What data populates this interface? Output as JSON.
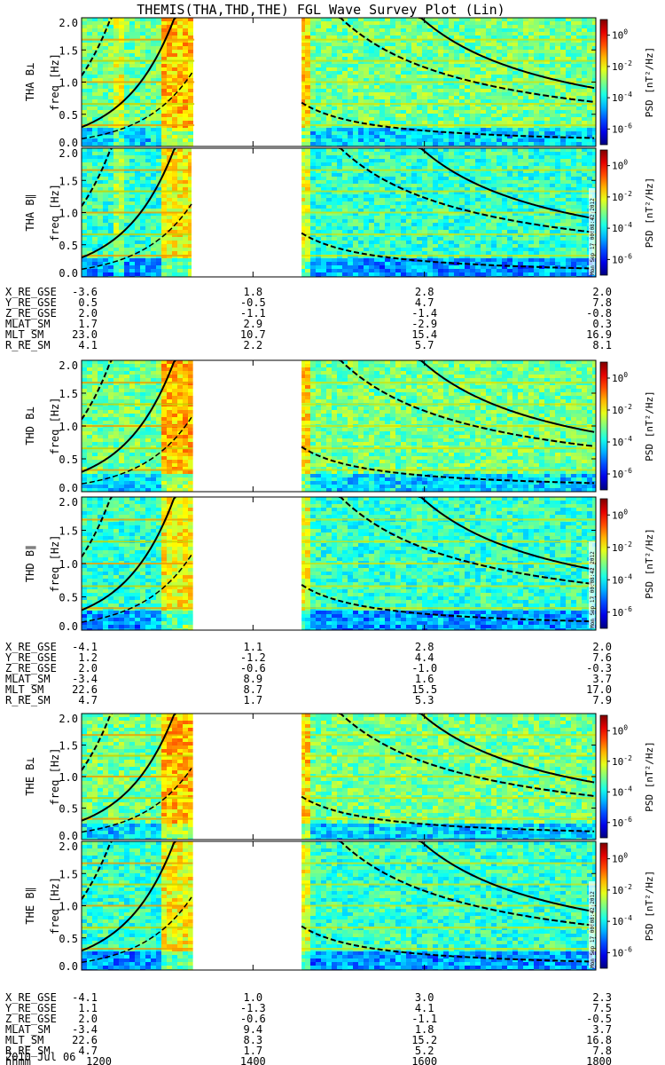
{
  "title": "THEMIS(THA,THD,THE) FGL Wave Survey Plot (Lin)",
  "stamp": "Mon Sep 17 00:08:42 2012",
  "colorbar": {
    "label": "PSD [nT²/Hz]",
    "ticks": [
      "10^0",
      "10^-2",
      "10^-4",
      "10^-6"
    ],
    "tick_exponents": [
      0,
      -2,
      -4,
      -6
    ],
    "range_log10": [
      -7,
      1
    ]
  },
  "freq_axis": {
    "label": "freq [Hz]",
    "ticks": [
      "0.0",
      "0.5",
      "1.0",
      "1.5",
      "2.0"
    ],
    "range": [
      0,
      2
    ]
  },
  "time_axis": {
    "range_minutes": [
      720,
      1080
    ],
    "hhmm_ticks": [
      "1200",
      "1400",
      "1600",
      "1800"
    ],
    "date": "2010 Jul 06"
  },
  "colors": {
    "gap": "#ffffff",
    "background": "#2cb24a",
    "curve": "#000000"
  },
  "panels": [
    {
      "id": "tha-bperp",
      "probe": "THA",
      "label": "THA B⊥",
      "component": "perp"
    },
    {
      "id": "tha-bpar",
      "probe": "THA",
      "label": "THA B∥",
      "component": "par"
    },
    {
      "id": "thd-bperp",
      "probe": "THD",
      "label": "THD B⊥",
      "component": "perp"
    },
    {
      "id": "thd-bpar",
      "probe": "THD",
      "label": "THD B∥",
      "component": "par"
    },
    {
      "id": "the-bperp",
      "probe": "THE",
      "label": "THE B⊥",
      "component": "perp"
    },
    {
      "id": "the-bpar",
      "probe": "THE",
      "label": "THE B∥",
      "component": "par"
    }
  ],
  "ephemeris": [
    {
      "probe": "THA",
      "rows": [
        {
          "name": "X_RE_GSE",
          "values": [
            "-3.6",
            "1.8",
            "2.8",
            "2.0"
          ]
        },
        {
          "name": "Y_RE_GSE",
          "values": [
            "0.5",
            "-0.5",
            "4.7",
            "7.8"
          ]
        },
        {
          "name": "Z_RE_GSE",
          "values": [
            "2.0",
            "-1.1",
            "-1.4",
            "-0.8"
          ]
        },
        {
          "name": "MLAT_SM",
          "values": [
            "1.7",
            "2.9",
            "-2.9",
            "0.3"
          ]
        },
        {
          "name": "MLT_SM",
          "values": [
            "23.0",
            "10.7",
            "15.4",
            "16.9"
          ]
        },
        {
          "name": "R_RE_SM",
          "values": [
            "4.1",
            "2.2",
            "5.7",
            "8.1"
          ]
        }
      ]
    },
    {
      "probe": "THD",
      "rows": [
        {
          "name": "X_RE_GSE",
          "values": [
            "-4.1",
            "1.1",
            "2.8",
            "2.0"
          ]
        },
        {
          "name": "Y_RE_GSE",
          "values": [
            "1.2",
            "-1.2",
            "4.4",
            "7.6"
          ]
        },
        {
          "name": "Z_RE_GSE",
          "values": [
            "2.0",
            "-0.6",
            "-1.0",
            "-0.3"
          ]
        },
        {
          "name": "MLAT_SM",
          "values": [
            "-3.4",
            "8.9",
            "1.6",
            "3.7"
          ]
        },
        {
          "name": "MLT_SM",
          "values": [
            "22.6",
            "8.7",
            "15.5",
            "17.0"
          ]
        },
        {
          "name": "R_RE_SM",
          "values": [
            "4.7",
            "1.7",
            "5.3",
            "7.9"
          ]
        }
      ]
    },
    {
      "probe": "THE",
      "rows": [
        {
          "name": "X_RE_GSE",
          "values": [
            "-4.1",
            "1.0",
            "3.0",
            "2.3"
          ]
        },
        {
          "name": "Y_RE_GSE",
          "values": [
            "1.1",
            "-1.3",
            "4.1",
            "7.5"
          ]
        },
        {
          "name": "Z_RE_GSE",
          "values": [
            "2.0",
            "-0.6",
            "-1.1",
            "-0.5"
          ]
        },
        {
          "name": "MLAT_SM",
          "values": [
            "-3.4",
            "9.4",
            "1.8",
            "3.7"
          ]
        },
        {
          "name": "MLT_SM",
          "values": [
            "22.6",
            "8.3",
            "15.2",
            "16.8"
          ]
        },
        {
          "name": "R_RE_SM",
          "values": [
            "4.7",
            "1.7",
            "5.2",
            "7.8"
          ]
        }
      ],
      "hhmm_label": "hhmm",
      "hhmm_values": [
        "1200",
        "1400",
        "1600",
        "1800"
      ]
    }
  ],
  "chart_data": [
    {
      "type": "heatmap",
      "title": "THEMIS(THA,THD,THE) FGL Wave Survey Plot (Lin)",
      "ylabel": "freq [Hz]",
      "ylim": [
        0,
        2
      ],
      "xlim_hhmm": [
        "1200",
        "1800"
      ],
      "colorbar_label": "PSD [nT²/Hz]",
      "color_scale": "log10",
      "color_range": [
        "10^-6",
        "10^0"
      ],
      "grid": false,
      "panels": [
        {
          "name": "THA B⊥",
          "data_gaps_hhmm": [
            [
              "1319",
              "1434"
            ]
          ],
          "background_psd_log10": -3
        },
        {
          "name": "THA B∥",
          "data_gaps_hhmm": [
            [
              "1319",
              "1434"
            ]
          ],
          "background_psd_log10": -3.5
        },
        {
          "name": "THD B⊥",
          "data_gaps_hhmm": [
            [
              "1317",
              "1434"
            ]
          ],
          "background_psd_log10": -3
        },
        {
          "name": "THD B∥",
          "data_gaps_hhmm": [
            [
              "1317",
              "1434"
            ]
          ],
          "background_psd_log10": -3.5
        },
        {
          "name": "THE B⊥",
          "data_gaps_hhmm": [
            [
              "1318",
              "1434"
            ]
          ],
          "background_psd_log10": -3
        },
        {
          "name": "THE B∥",
          "data_gaps_hhmm": [
            [
              "1318",
              "1434"
            ]
          ],
          "background_psd_log10": -3.5
        }
      ]
    }
  ]
}
